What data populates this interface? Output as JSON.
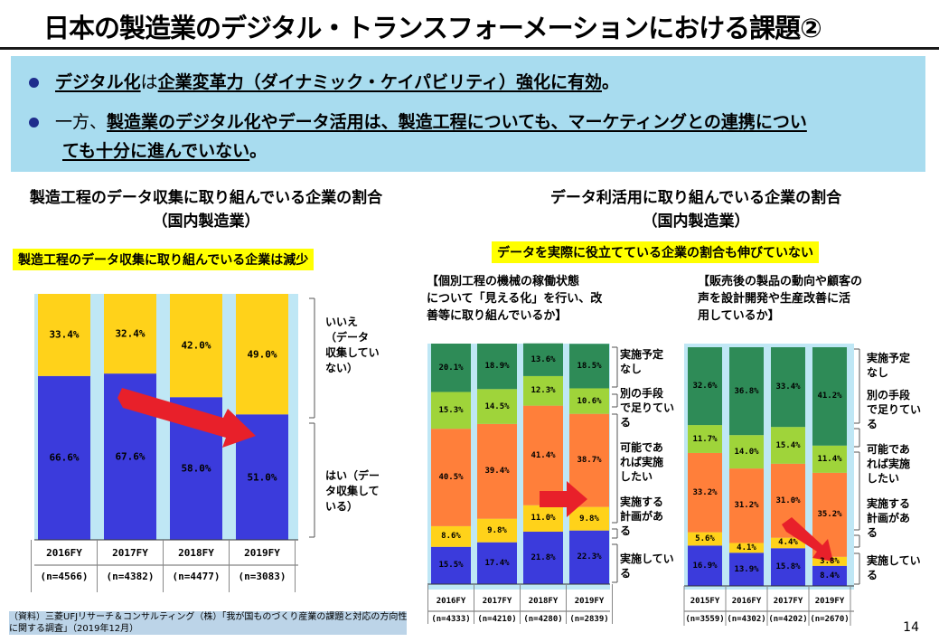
{
  "title": "日本の製造業のデジタル・トランスフォーメーションにおける課題②",
  "summary": {
    "bullet1": {
      "a": "デジタル化",
      "b": "は",
      "c": "企業変革力（ダイナミック・ケイパビリティ）強化に有効",
      "d": "。"
    },
    "bullet2": {
      "a": "一方、",
      "b": "製造業のデジタル化やデータ活用は、製造工程についても、マーケティングとの連携につい",
      "c": "ても十分に進んでいない",
      "d": "。"
    }
  },
  "left_section": {
    "title_line1": "製造工程のデータ収集に取り組んでいる企業の割合",
    "title_line2": "（国内製造業）",
    "highlight": "製造工程のデータ収集に取り組んでいる企業は減少",
    "legend": {
      "no": [
        "いいえ",
        "（データ",
        "収集してい",
        "ない）"
      ],
      "yes": [
        "はい（デー",
        "タ収集して",
        "いる）"
      ]
    }
  },
  "right_section": {
    "title_line1": "データ利活用に取り組んでいる企業の割合",
    "title_line2": "（国内製造業）",
    "highlight": "データを実際に役立てている企業の割合も伸びていない",
    "note_left": [
      "【個別工程の機械の稼働状態",
      "について「見える化」を行い、改",
      "善等に取り組んでいるか】"
    ],
    "note_right": [
      "【販売後の製品の動向や顧客の",
      "声を設計開発や生産改善に活",
      "用しているか】"
    ],
    "legend_a": [
      [
        "実施予定",
        "なし"
      ],
      [
        "別の手段",
        "で足りてい",
        "る"
      ],
      [
        "可能であ",
        "れば実施",
        "したい"
      ],
      [
        "実施する",
        "計画があ",
        "る"
      ],
      [
        "実施してい",
        "る"
      ]
    ],
    "legend_b": [
      [
        "実施予定",
        "なし"
      ],
      [
        "別の手段",
        "で足りてい",
        "る"
      ],
      [
        "可能であ",
        "れば実施",
        "したい"
      ],
      [
        "実施する",
        "計画があ",
        "る"
      ],
      [
        "実施してい",
        "る"
      ]
    ]
  },
  "chart_data": [
    {
      "type": "bar",
      "stacked": true,
      "title": "製造工程のデータ収集に取り組んでいる企業の割合",
      "categories": [
        "2016FY",
        "2017FY",
        "2018FY",
        "2019FY"
      ],
      "sample_sizes": [
        "(n=4566)",
        "(n=4382)",
        "(n=4477)",
        "(n=3083)"
      ],
      "series": [
        {
          "name": "はい（データ収集している）",
          "values": [
            66.6,
            67.6,
            58.0,
            51.0
          ],
          "labels": [
            "66.6%",
            "67.6%",
            "58.0%",
            "51.0%"
          ],
          "color": "#3b3bdc"
        },
        {
          "name": "いいえ（データ収集していない）",
          "values": [
            33.4,
            32.4,
            42.0,
            49.0
          ],
          "labels": [
            "33.4%",
            "32.4%",
            "42.0%",
            "49.0%"
          ],
          "color": "#ffd21a"
        }
      ],
      "ylim": [
        0,
        100
      ]
    },
    {
      "type": "bar",
      "stacked": true,
      "title": "個別工程の機械の稼働状態について「見える化」を行い、改善等に取り組んでいるか",
      "categories": [
        "2016FY",
        "2017FY",
        "2018FY",
        "2019FY"
      ],
      "sample_sizes": [
        "(n=4333)",
        "(n=4210)",
        "(n=4280)",
        "(n=2839)"
      ],
      "series": [
        {
          "name": "実施している",
          "values": [
            15.5,
            17.4,
            21.8,
            22.3
          ],
          "labels": [
            "15.5%",
            "17.4%",
            "21.8%",
            "22.3%"
          ],
          "color": "#3b3bdc"
        },
        {
          "name": "実施する計画がある",
          "values": [
            8.6,
            9.8,
            11.0,
            9.8
          ],
          "labels": [
            "8.6%",
            "9.8%",
            "11.0%",
            "9.8%"
          ],
          "color": "#ffd21a"
        },
        {
          "name": "可能であれば実施したい",
          "values": [
            40.5,
            39.4,
            41.4,
            38.7
          ],
          "labels": [
            "40.5%",
            "39.4%",
            "41.4%",
            "38.7%"
          ],
          "color": "#ff7f3a"
        },
        {
          "name": "別の手段で足りている",
          "values": [
            15.3,
            14.5,
            12.3,
            10.6
          ],
          "labels": [
            "15.3%",
            "14.5%",
            "12.3%",
            "10.6%"
          ],
          "color": "#9fd43a"
        },
        {
          "name": "実施予定なし",
          "values": [
            20.1,
            18.9,
            13.6,
            18.5
          ],
          "labels": [
            "20.1%",
            "18.9%",
            "13.6%",
            "18.5%"
          ],
          "color": "#2e8b57"
        }
      ],
      "ylim": [
        0,
        100
      ]
    },
    {
      "type": "bar",
      "stacked": true,
      "title": "販売後の製品の動向や顧客の声を設計開発や生産改善に活用しているか",
      "categories": [
        "2015FY",
        "2016FY",
        "2017FY",
        "2019FY"
      ],
      "sample_sizes": [
        "(n=3559)",
        "(n=4302)",
        "(n=4202)",
        "(n=2670)"
      ],
      "series": [
        {
          "name": "実施している",
          "values": [
            16.9,
            13.9,
            15.8,
            8.4
          ],
          "labels": [
            "16.9%",
            "13.9%",
            "15.8%",
            "8.4%"
          ],
          "color": "#3b3bdc"
        },
        {
          "name": "実施する計画がある",
          "values": [
            5.6,
            4.1,
            4.4,
            3.8
          ],
          "labels": [
            "5.6%",
            "4.1%",
            "4.4%",
            "3.8%"
          ],
          "color": "#ffd21a"
        },
        {
          "name": "可能であれば実施したい",
          "values": [
            33.2,
            31.2,
            31.0,
            35.2
          ],
          "labels": [
            "33.2%",
            "31.2%",
            "31.0%",
            "35.2%"
          ],
          "color": "#ff7f3a"
        },
        {
          "name": "別の手段で足りている",
          "values": [
            11.7,
            14.0,
            15.4,
            11.4
          ],
          "labels": [
            "11.7%",
            "14.0%",
            "15.4%",
            "11.4%"
          ],
          "color": "#9fd43a"
        },
        {
          "name": "実施予定なし",
          "values": [
            32.6,
            36.8,
            33.4,
            41.2
          ],
          "labels": [
            "32.6%",
            "36.8%",
            "33.4%",
            "41.2%"
          ],
          "color": "#2e8b57"
        }
      ],
      "ylim": [
        0,
        100
      ]
    }
  ],
  "source": {
    "line1": "（資料）三菱UFJリサーチ＆コンサルティング（株）「我が国ものづくり産業の課題と対応の方向性",
    "line2": "に関する調査」（2019年12月）"
  },
  "page_number": "14"
}
